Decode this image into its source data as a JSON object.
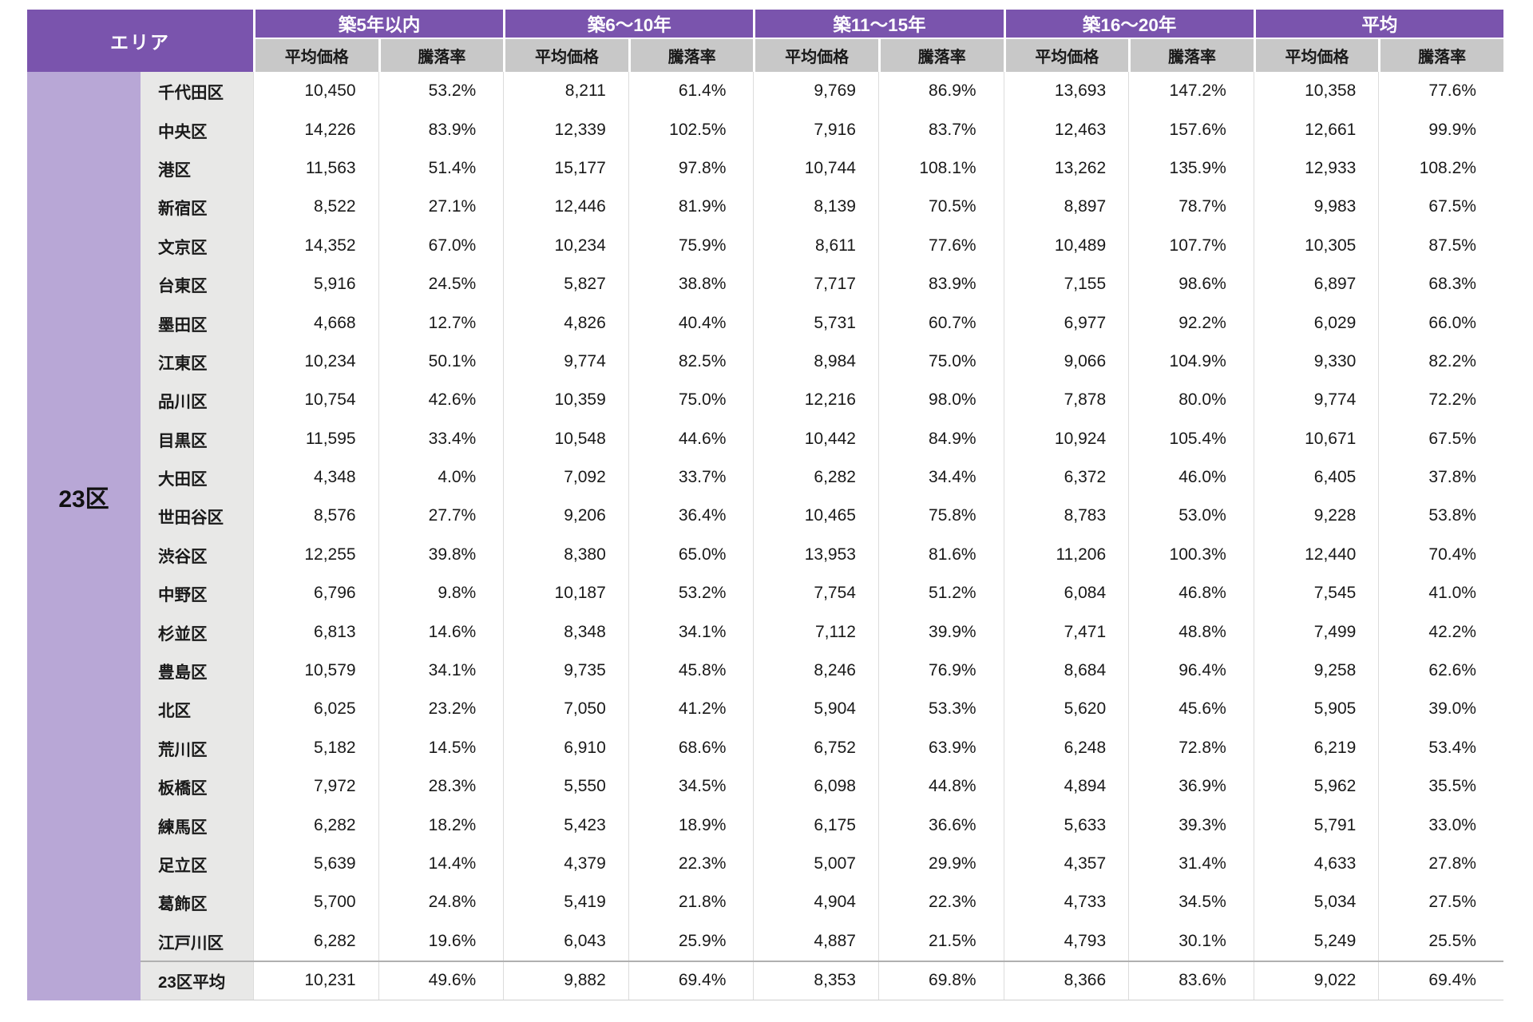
{
  "chart_data": {
    "type": "table",
    "area_header": "エリア",
    "area_value": "23区",
    "groups": [
      {
        "label": "築5年以内"
      },
      {
        "label": "築6〜10年"
      },
      {
        "label": "築11〜15年"
      },
      {
        "label": "築16〜20年"
      },
      {
        "label": "平均"
      }
    ],
    "sub_headers": [
      "平均価格",
      "騰落率"
    ],
    "columns_per_group": [
      "平均価格",
      "騰落率"
    ],
    "rows": [
      {
        "name": "千代田区",
        "values": [
          "10,450",
          "53.2%",
          "8,211",
          "61.4%",
          "9,769",
          "86.9%",
          "13,693",
          "147.2%",
          "10,358",
          "77.6%"
        ]
      },
      {
        "name": "中央区",
        "values": [
          "14,226",
          "83.9%",
          "12,339",
          "102.5%",
          "7,916",
          "83.7%",
          "12,463",
          "157.6%",
          "12,661",
          "99.9%"
        ]
      },
      {
        "name": "港区",
        "values": [
          "11,563",
          "51.4%",
          "15,177",
          "97.8%",
          "10,744",
          "108.1%",
          "13,262",
          "135.9%",
          "12,933",
          "108.2%"
        ]
      },
      {
        "name": "新宿区",
        "values": [
          "8,522",
          "27.1%",
          "12,446",
          "81.9%",
          "8,139",
          "70.5%",
          "8,897",
          "78.7%",
          "9,983",
          "67.5%"
        ]
      },
      {
        "name": "文京区",
        "values": [
          "14,352",
          "67.0%",
          "10,234",
          "75.9%",
          "8,611",
          "77.6%",
          "10,489",
          "107.7%",
          "10,305",
          "87.5%"
        ]
      },
      {
        "name": "台東区",
        "values": [
          "5,916",
          "24.5%",
          "5,827",
          "38.8%",
          "7,717",
          "83.9%",
          "7,155",
          "98.6%",
          "6,897",
          "68.3%"
        ]
      },
      {
        "name": "墨田区",
        "values": [
          "4,668",
          "12.7%",
          "4,826",
          "40.4%",
          "5,731",
          "60.7%",
          "6,977",
          "92.2%",
          "6,029",
          "66.0%"
        ]
      },
      {
        "name": "江東区",
        "values": [
          "10,234",
          "50.1%",
          "9,774",
          "82.5%",
          "8,984",
          "75.0%",
          "9,066",
          "104.9%",
          "9,330",
          "82.2%"
        ]
      },
      {
        "name": "品川区",
        "values": [
          "10,754",
          "42.6%",
          "10,359",
          "75.0%",
          "12,216",
          "98.0%",
          "7,878",
          "80.0%",
          "9,774",
          "72.2%"
        ]
      },
      {
        "name": "目黒区",
        "values": [
          "11,595",
          "33.4%",
          "10,548",
          "44.6%",
          "10,442",
          "84.9%",
          "10,924",
          "105.4%",
          "10,671",
          "67.5%"
        ]
      },
      {
        "name": "大田区",
        "values": [
          "4,348",
          "4.0%",
          "7,092",
          "33.7%",
          "6,282",
          "34.4%",
          "6,372",
          "46.0%",
          "6,405",
          "37.8%"
        ]
      },
      {
        "name": "世田谷区",
        "values": [
          "8,576",
          "27.7%",
          "9,206",
          "36.4%",
          "10,465",
          "75.8%",
          "8,783",
          "53.0%",
          "9,228",
          "53.8%"
        ]
      },
      {
        "name": "渋谷区",
        "values": [
          "12,255",
          "39.8%",
          "8,380",
          "65.0%",
          "13,953",
          "81.6%",
          "11,206",
          "100.3%",
          "12,440",
          "70.4%"
        ]
      },
      {
        "name": "中野区",
        "values": [
          "6,796",
          "9.8%",
          "10,187",
          "53.2%",
          "7,754",
          "51.2%",
          "6,084",
          "46.8%",
          "7,545",
          "41.0%"
        ]
      },
      {
        "name": "杉並区",
        "values": [
          "6,813",
          "14.6%",
          "8,348",
          "34.1%",
          "7,112",
          "39.9%",
          "7,471",
          "48.8%",
          "7,499",
          "42.2%"
        ]
      },
      {
        "name": "豊島区",
        "values": [
          "10,579",
          "34.1%",
          "9,735",
          "45.8%",
          "8,246",
          "76.9%",
          "8,684",
          "96.4%",
          "9,258",
          "62.6%"
        ]
      },
      {
        "name": "北区",
        "values": [
          "6,025",
          "23.2%",
          "7,050",
          "41.2%",
          "5,904",
          "53.3%",
          "5,620",
          "45.6%",
          "5,905",
          "39.0%"
        ]
      },
      {
        "name": "荒川区",
        "values": [
          "5,182",
          "14.5%",
          "6,910",
          "68.6%",
          "6,752",
          "63.9%",
          "6,248",
          "72.8%",
          "6,219",
          "53.4%"
        ]
      },
      {
        "name": "板橋区",
        "values": [
          "7,972",
          "28.3%",
          "5,550",
          "34.5%",
          "6,098",
          "44.8%",
          "4,894",
          "36.9%",
          "5,962",
          "35.5%"
        ]
      },
      {
        "name": "練馬区",
        "values": [
          "6,282",
          "18.2%",
          "5,423",
          "18.9%",
          "6,175",
          "36.6%",
          "5,633",
          "39.3%",
          "5,791",
          "33.0%"
        ]
      },
      {
        "name": "足立区",
        "values": [
          "5,639",
          "14.4%",
          "4,379",
          "22.3%",
          "5,007",
          "29.9%",
          "4,357",
          "31.4%",
          "4,633",
          "27.8%"
        ]
      },
      {
        "name": "葛飾区",
        "values": [
          "5,700",
          "24.8%",
          "5,419",
          "21.8%",
          "4,904",
          "22.3%",
          "4,733",
          "34.5%",
          "5,034",
          "27.5%"
        ]
      },
      {
        "name": "江戸川区",
        "values": [
          "6,282",
          "19.6%",
          "6,043",
          "25.9%",
          "4,887",
          "21.5%",
          "4,793",
          "30.1%",
          "5,249",
          "25.5%"
        ]
      }
    ],
    "average_row": {
      "name": "23区平均",
      "values": [
        "10,231",
        "49.6%",
        "9,882",
        "69.4%",
        "8,353",
        "69.8%",
        "8,366",
        "83.6%",
        "9,022",
        "69.4%"
      ]
    },
    "colors": {
      "header_purple": "#7a54ad",
      "area_light_purple": "#b8a7d6",
      "subheader_gray": "#c8c8c8",
      "row_label_gray": "#e8e8e7",
      "grid_line": "#dcdcdc",
      "average_separator": "#b0b0b0"
    }
  }
}
